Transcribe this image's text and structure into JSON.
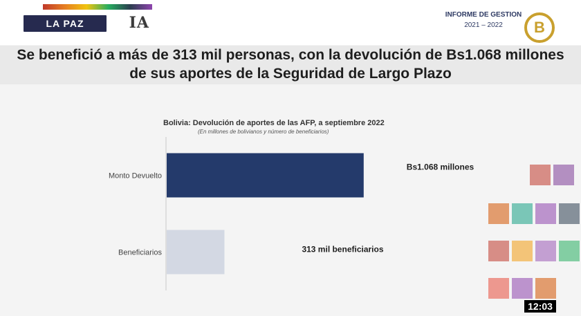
{
  "header": {
    "location": "LA PAZ",
    "logo_text": "IA",
    "report_title": "INFORME DE GESTION",
    "report_period": "2021 – 2022",
    "brand_letter": "B"
  },
  "headline": {
    "line1": "Se benefició a más de 313 mil personas, con la devolución de Bs1.068 millones",
    "line2": "de sus aportes de la Seguridad de Largo Plazo"
  },
  "chart_data": {
    "type": "bar",
    "orientation": "horizontal",
    "title": "Bolivia: Devolución de aportes de las AFP, a septiembre 2022",
    "subtitle": "(En millones de bolivianos y número de beneficiarios)",
    "categories": [
      "Monto Devuelto",
      "Beneficiarios"
    ],
    "values": [
      1068,
      313
    ],
    "data_labels": [
      "Bs1.068 millones",
      "313 mil beneficiarios"
    ],
    "colors": [
      "#243a6b",
      "#d3d8e3"
    ],
    "xlim": [
      0,
      1500
    ],
    "grid": false,
    "legend": "none"
  },
  "overlay": {
    "clock": "12:03"
  }
}
